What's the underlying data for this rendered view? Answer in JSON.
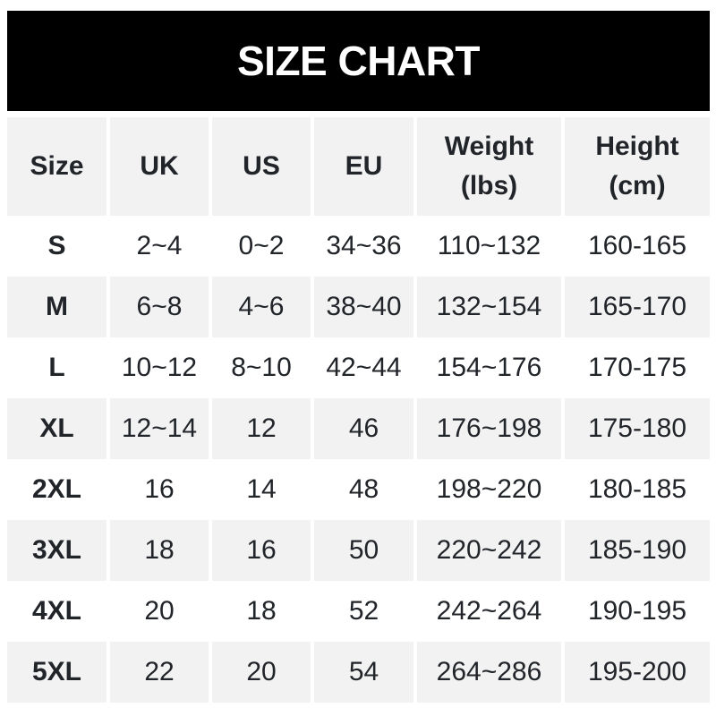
{
  "banner": {
    "title": "SIZE CHART"
  },
  "header": {
    "size": "Size",
    "uk": "UK",
    "us": "US",
    "eu": "EU",
    "weight_line1": "Weight",
    "weight_line2": "(lbs)",
    "height_line1": "Height",
    "height_line2": "(cm)"
  },
  "rows": [
    {
      "size": "S",
      "uk": "2~4",
      "us": "0~2",
      "eu": "34~36",
      "weight_lbs": "110~132",
      "height_cm": "160-165"
    },
    {
      "size": "M",
      "uk": "6~8",
      "us": "4~6",
      "eu": "38~40",
      "weight_lbs": "132~154",
      "height_cm": "165-170"
    },
    {
      "size": "L",
      "uk": "10~12",
      "us": "8~10",
      "eu": "42~44",
      "weight_lbs": "154~176",
      "height_cm": "170-175"
    },
    {
      "size": "XL",
      "uk": "12~14",
      "us": "12",
      "eu": "46",
      "weight_lbs": "176~198",
      "height_cm": "175-180"
    },
    {
      "size": "2XL",
      "uk": "16",
      "us": "14",
      "eu": "48",
      "weight_lbs": "198~220",
      "height_cm": "180-185"
    },
    {
      "size": "3XL",
      "uk": "18",
      "us": "16",
      "eu": "50",
      "weight_lbs": "220~242",
      "height_cm": "185-190"
    },
    {
      "size": "4XL",
      "uk": "20",
      "us": "18",
      "eu": "52",
      "weight_lbs": "242~264",
      "height_cm": "190-195"
    },
    {
      "size": "5XL",
      "uk": "22",
      "us": "20",
      "eu": "54",
      "weight_lbs": "264~286",
      "height_cm": "195-200"
    }
  ],
  "colors": {
    "banner_bg": "#000000",
    "banner_text": "#ffffff",
    "stripe_gray": "#f2f2f2",
    "text_dark": "#212429"
  },
  "chart_data": {
    "type": "table",
    "title": "SIZE CHART",
    "columns": [
      "Size",
      "UK",
      "US",
      "EU",
      "Weight (lbs)",
      "Height (cm)"
    ],
    "rows": [
      [
        "S",
        "2~4",
        "0~2",
        "34~36",
        "110~132",
        "160-165"
      ],
      [
        "M",
        "6~8",
        "4~6",
        "38~40",
        "132~154",
        "165-170"
      ],
      [
        "L",
        "10~12",
        "8~10",
        "42~44",
        "154~176",
        "170-175"
      ],
      [
        "XL",
        "12~14",
        "12",
        "46",
        "176~198",
        "175-180"
      ],
      [
        "2XL",
        "16",
        "14",
        "48",
        "198~220",
        "180-185"
      ],
      [
        "3XL",
        "18",
        "16",
        "50",
        "220~242",
        "185-190"
      ],
      [
        "4XL",
        "20",
        "18",
        "52",
        "242~264",
        "190-195"
      ],
      [
        "5XL",
        "22",
        "20",
        "54",
        "264~286",
        "195-200"
      ]
    ],
    "layout_hints": {
      "header_fill": "#f2f2f2",
      "row_striping": [
        "#ffffff",
        "#f2f2f2"
      ],
      "title_banner": "black bar, white bold text"
    }
  }
}
